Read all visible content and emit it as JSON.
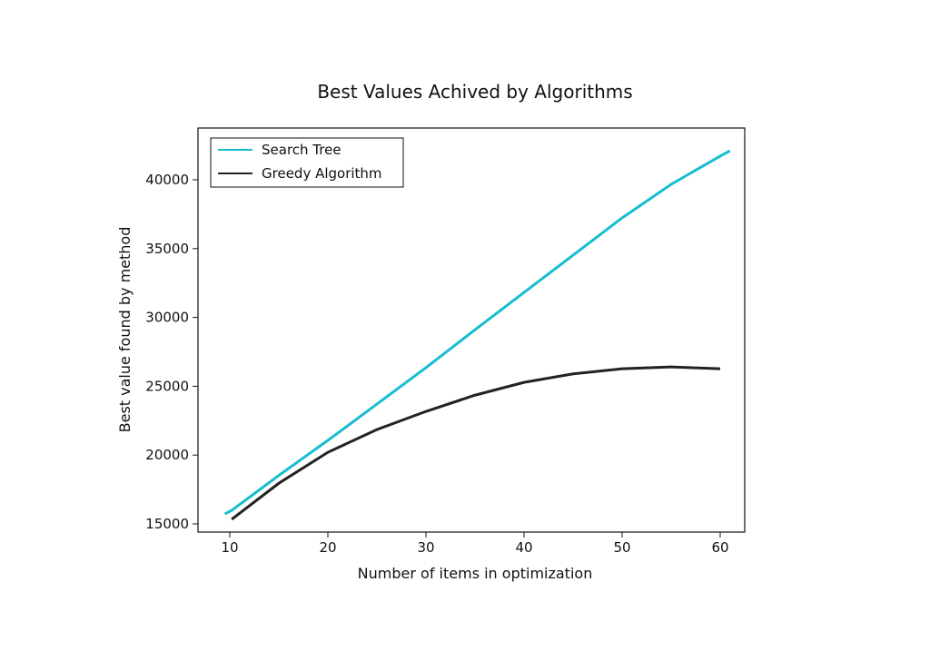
{
  "chart_data": {
    "type": "line",
    "title": "Best Values Achived by Algorithms",
    "xlabel": "Number of items in optimization",
    "ylabel": "Best value found by method",
    "x": [
      9.5,
      10.2,
      15,
      20,
      25,
      30,
      35,
      40,
      45,
      50,
      55,
      60,
      61
    ],
    "series": [
      {
        "name": "Search Tree",
        "color": "#17becf",
        "values": [
          15726,
          15980,
          18520,
          21070,
          23700,
          26350,
          29100,
          31820,
          34520,
          37230,
          39670,
          41720,
          42110
        ]
      },
      {
        "name": "Greedy Algorithm",
        "color": "#222222",
        "values": [
          null,
          15330,
          17950,
          20200,
          21850,
          23170,
          24350,
          25280,
          25900,
          26270,
          26400,
          26270,
          null
        ]
      }
    ],
    "xlim": [
      6.76,
      62.5
    ],
    "ylim": [
      14406,
      43760
    ],
    "xticks": [
      10,
      20,
      30,
      40,
      50,
      60
    ],
    "yticks": [
      15000,
      20000,
      25000,
      30000,
      35000,
      40000
    ],
    "legend": "upper left"
  }
}
